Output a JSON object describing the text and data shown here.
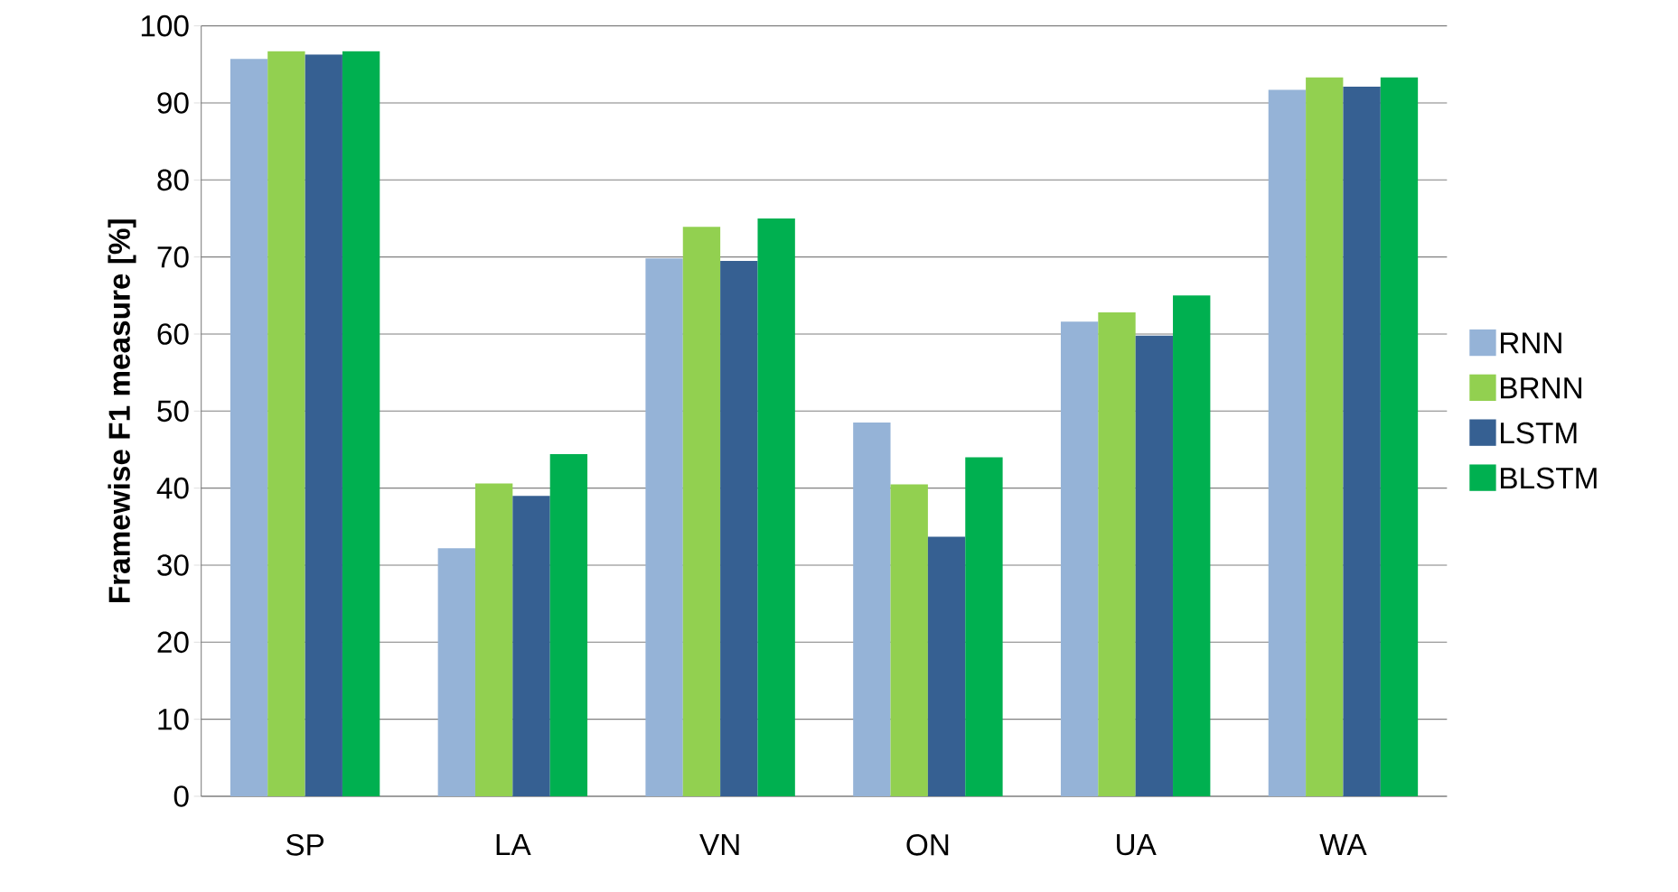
{
  "chart_data": {
    "type": "bar",
    "ylabel": "Framewise F1 measure [%]",
    "categories": [
      "SP",
      "LA",
      "VN",
      "ON",
      "UA",
      "WA"
    ],
    "series": [
      {
        "name": "RNN",
        "color": "#95b3d7",
        "values": [
          95.7,
          32.2,
          69.8,
          48.5,
          61.6,
          91.7
        ]
      },
      {
        "name": "BRNN",
        "color": "#92d050",
        "values": [
          96.7,
          40.6,
          73.9,
          40.5,
          62.8,
          93.3
        ]
      },
      {
        "name": "LSTM",
        "color": "#366092",
        "values": [
          96.3,
          39.0,
          69.5,
          33.7,
          59.8,
          92.1
        ]
      },
      {
        "name": "BLSTM",
        "color": "#00b050",
        "values": [
          96.7,
          44.4,
          75.0,
          44.0,
          65.0,
          93.3
        ]
      }
    ],
    "ylim": [
      0,
      100
    ],
    "yticks": [
      0,
      10,
      20,
      30,
      40,
      50,
      60,
      70,
      80,
      90,
      100
    ],
    "grid": "y",
    "legend": "right"
  }
}
